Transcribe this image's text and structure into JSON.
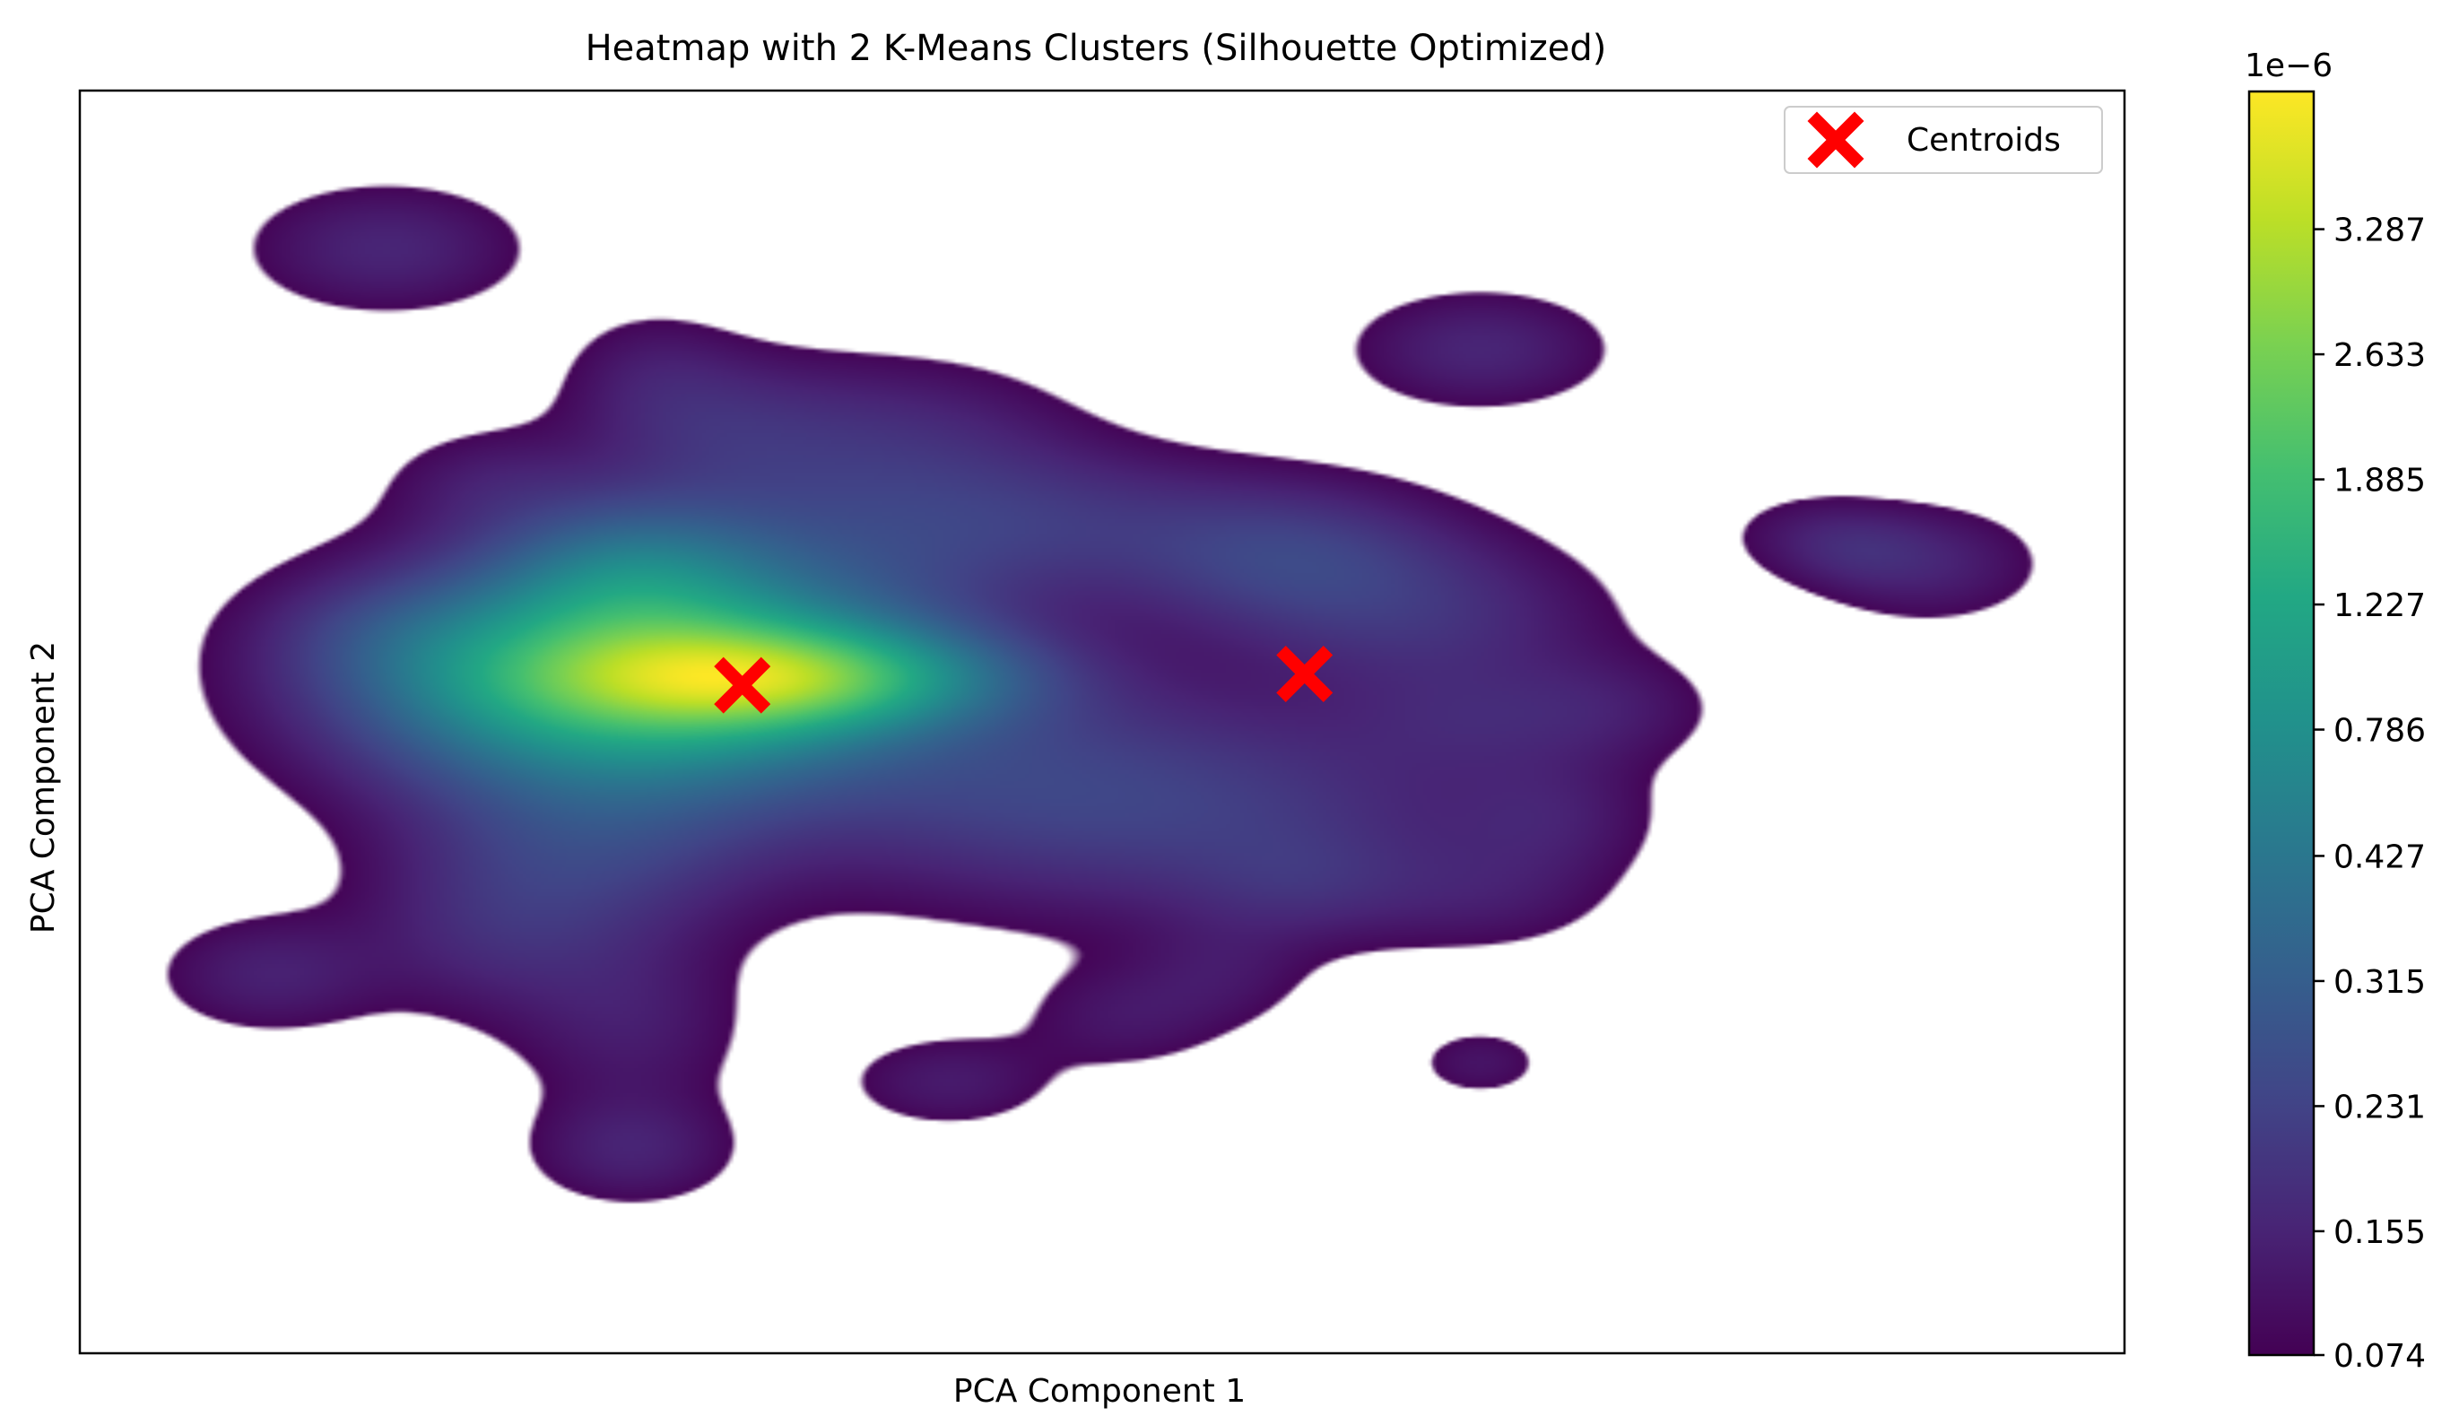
{
  "chart_data": {
    "type": "heatmap",
    "title": "Heatmap with 2 K-Means Clusters (Silhouette Optimized)",
    "xlabel": "PCA Component 1",
    "ylabel": "PCA Component 2",
    "xlim": [
      0,
      100
    ],
    "ylim": [
      0,
      100
    ],
    "axis_ticks_visible": false,
    "grid": false,
    "colormap": "viridis",
    "colorbar": {
      "offset_label": "1e−6",
      "tick_labels": [
        "0.074",
        "0.155",
        "0.231",
        "0.315",
        "0.427",
        "0.786",
        "1.227",
        "1.885",
        "2.633",
        "3.287"
      ],
      "tick_fractions": [
        0.0,
        0.098,
        0.197,
        0.296,
        0.395,
        0.495,
        0.594,
        0.693,
        0.792,
        0.891
      ],
      "range_fraction_top": 1.0
    },
    "density_blobs": [
      {
        "x": 27.2,
        "y": 46.5,
        "sx": 8.5,
        "sy": 6.0,
        "w": 0.62
      },
      {
        "x": 34.6,
        "y": 46.5,
        "sx": 6.8,
        "sy": 2.8,
        "w": 0.45
      },
      {
        "x": 27.0,
        "y": 38.0,
        "sx": 4.5,
        "sy": 4.0,
        "w": 0.18
      },
      {
        "x": 38.0,
        "y": 35.0,
        "sx": 7.0,
        "sy": 6.0,
        "w": 0.1
      },
      {
        "x": 25.0,
        "y": 60.0,
        "sx": 6.0,
        "sy": 5.0,
        "w": 0.12
      },
      {
        "x": 45.0,
        "y": 55.0,
        "sx": 8.0,
        "sy": 6.0,
        "w": 0.1
      },
      {
        "x": 57.0,
        "y": 57.0,
        "sx": 9.0,
        "sy": 6.0,
        "w": 0.1
      },
      {
        "x": 59.0,
        "y": 37.0,
        "sx": 5.5,
        "sy": 4.0,
        "w": 0.13
      },
      {
        "x": 66.0,
        "y": 42.0,
        "sx": 6.0,
        "sy": 4.5,
        "w": 0.09
      },
      {
        "x": 48.0,
        "y": 34.0,
        "sx": 6.5,
        "sy": 4.0,
        "w": 0.08
      },
      {
        "x": 40.5,
        "y": 26.5,
        "sx": 5.5,
        "sy": 4.0,
        "w": 0.05
      },
      {
        "x": 31.0,
        "y": 26.5,
        "sx": 4.5,
        "sy": 4.0,
        "w": 0.07
      },
      {
        "x": 20.0,
        "y": 46.5,
        "sx": 5.0,
        "sy": 4.0,
        "w": 0.05
      },
      {
        "x": 15.0,
        "y": 43.0,
        "sx": 4.0,
        "sy": 3.0,
        "w": 0.05
      },
      {
        "x": 20.5,
        "y": 67.0,
        "sx": 4.5,
        "sy": 4.5,
        "w": 0.07
      },
      {
        "x": 20.0,
        "y": 31.0,
        "sx": 3.5,
        "sy": 3.0,
        "w": 0.05
      },
      {
        "x": 27.0,
        "y": 74.0,
        "sx": 4.0,
        "sy": 5.0,
        "w": 0.06
      },
      {
        "x": 27.0,
        "y": 84.0,
        "sx": 3.5,
        "sy": 3.0,
        "w": 0.07
      },
      {
        "x": 28.0,
        "y": 22.0,
        "sx": 3.0,
        "sy": 3.5,
        "w": 0.04
      },
      {
        "x": 42.5,
        "y": 78.5,
        "sx": 3.5,
        "sy": 2.6,
        "w": 0.06
      },
      {
        "x": 51.0,
        "y": 73.5,
        "sx": 3.5,
        "sy": 3.0,
        "w": 0.05
      },
      {
        "x": 56.0,
        "y": 70.0,
        "sx": 3.0,
        "sy": 3.0,
        "w": 0.04
      },
      {
        "x": 60.0,
        "y": 63.0,
        "sx": 4.0,
        "sy": 3.0,
        "w": 0.05
      },
      {
        "x": 69.0,
        "y": 64.0,
        "sx": 4.0,
        "sy": 3.0,
        "w": 0.04
      },
      {
        "x": 72.0,
        "y": 57.5,
        "sx": 3.5,
        "sy": 3.5,
        "w": 0.05
      },
      {
        "x": 74.8,
        "y": 49.0,
        "sx": 3.8,
        "sy": 3.0,
        "w": 0.05
      },
      {
        "x": 68.0,
        "y": 50.0,
        "sx": 4.0,
        "sy": 3.0,
        "w": 0.04
      },
      {
        "x": 9.3,
        "y": 70.0,
        "sx": 3.8,
        "sy": 3.2,
        "w": 0.07
      },
      {
        "x": 68.5,
        "y": 77.0,
        "sx": 2.3,
        "sy": 2.0,
        "w": 0.05
      },
      {
        "x": 68.5,
        "y": 20.5,
        "sx": 4.3,
        "sy": 3.2,
        "w": 0.08
      },
      {
        "x": 15.0,
        "y": 12.5,
        "sx": 4.6,
        "sy": 3.5,
        "w": 0.08
      },
      {
        "x": 90.5,
        "y": 37.5,
        "sx": 3.8,
        "sy": 3.2,
        "w": 0.07
      },
      {
        "x": 84.5,
        "y": 35.0,
        "sx": 3.0,
        "sy": 2.4,
        "w": 0.04
      },
      {
        "x": 87.0,
        "y": 36.5,
        "sx": 2.5,
        "sy": 2.0,
        "w": 0.04
      }
    ],
    "density_threshold": 0.028,
    "centroids": {
      "label": "Centroids",
      "color": "#ff0000",
      "marker": "X",
      "points": [
        {
          "x": 32.4,
          "y": 47.1
        },
        {
          "x": 59.9,
          "y": 46.2
        }
      ]
    },
    "legend_position": "top-right"
  }
}
